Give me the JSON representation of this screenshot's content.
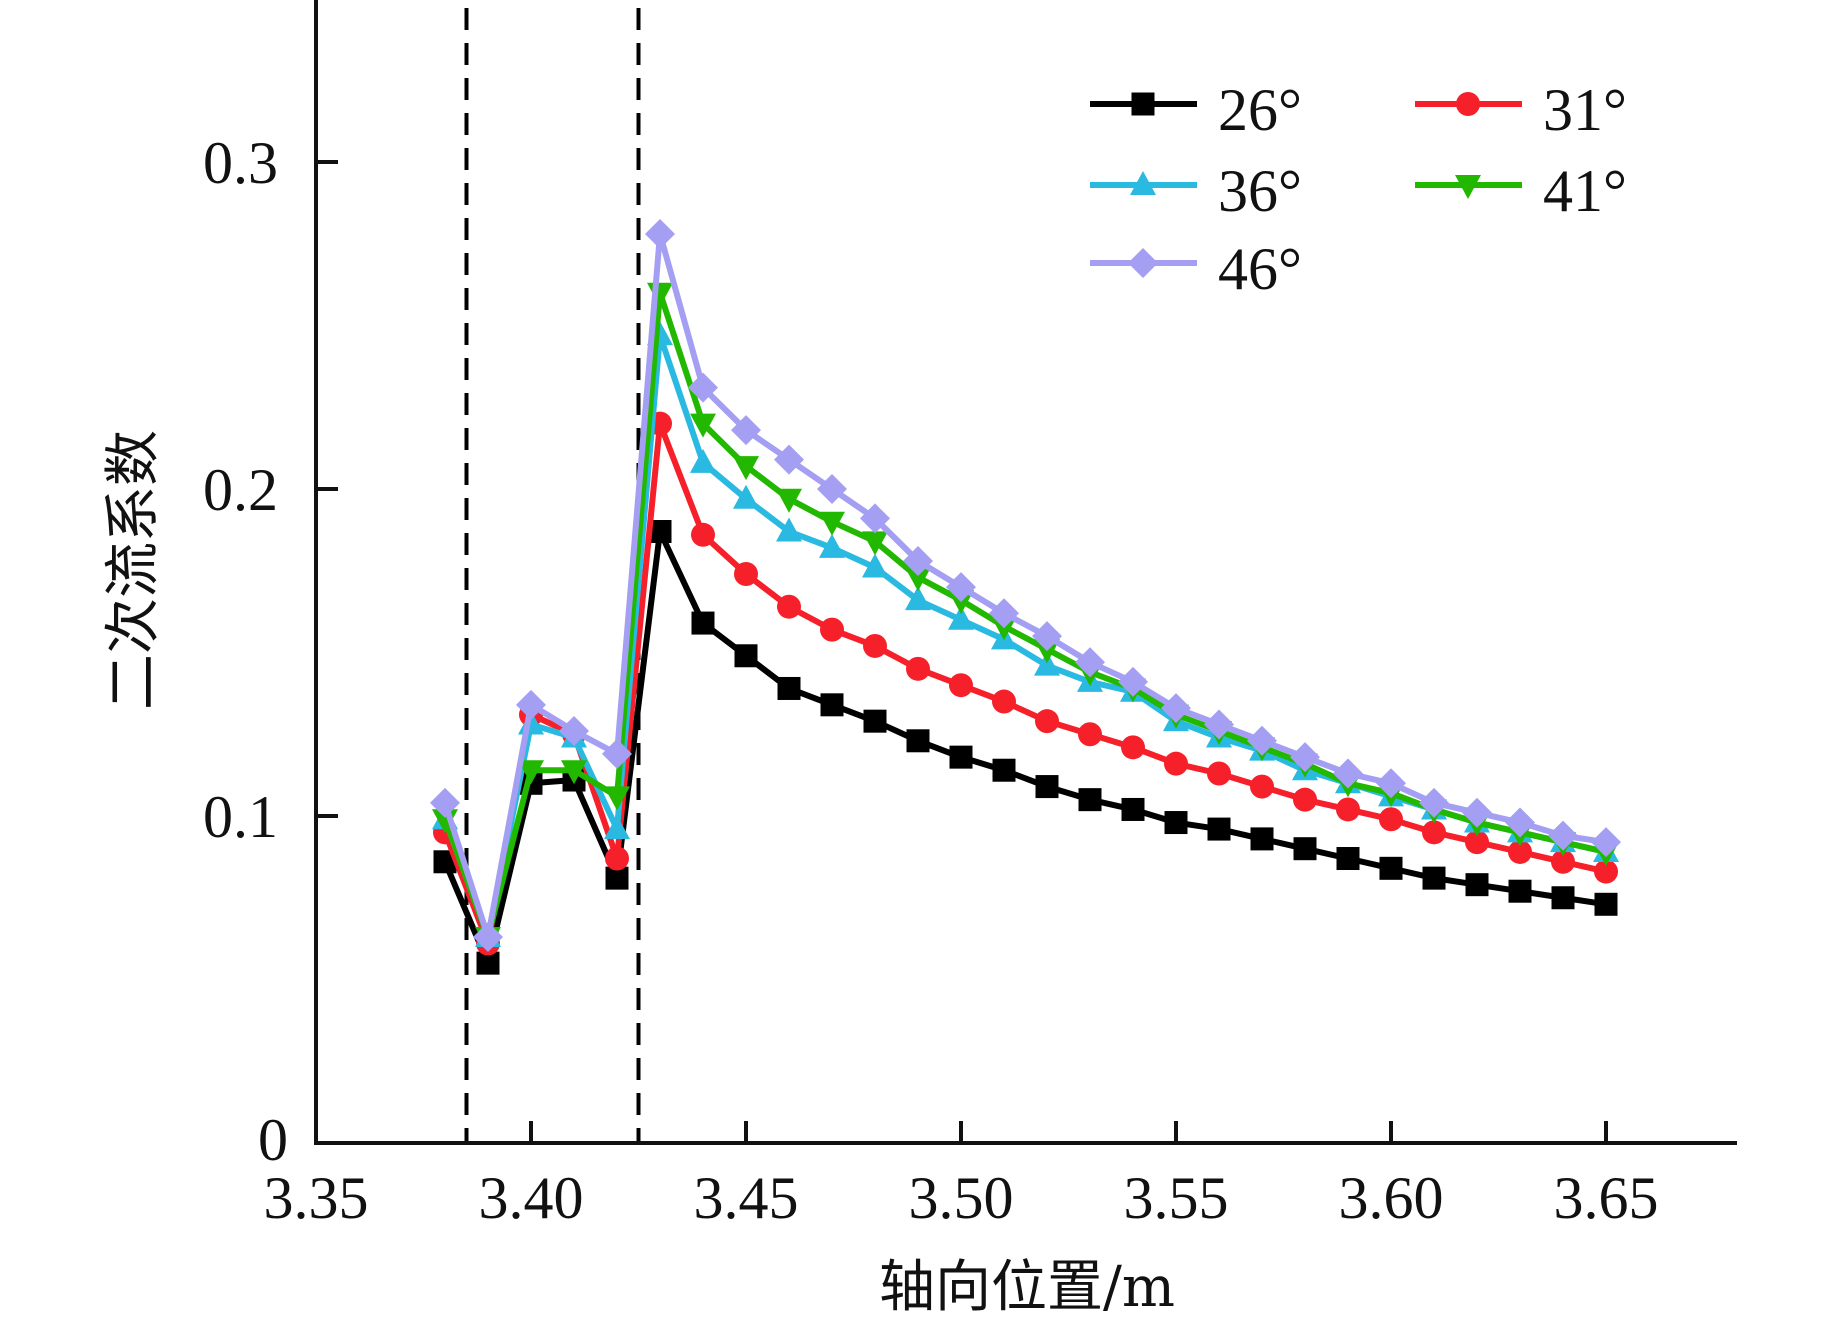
{
  "chart_data": {
    "type": "line",
    "title": "",
    "xlabel": "轴向位置/m",
    "ylabel": "二次流系数",
    "xlim": [
      3.35,
      3.68
    ],
    "ylim": [
      0,
      0.35
    ],
    "x_ticks": [
      3.35,
      3.4,
      3.45,
      3.5,
      3.55,
      3.6,
      3.65
    ],
    "x_tick_labels": [
      "3.35",
      "3.40",
      "3.45",
      "3.50",
      "3.55",
      "3.60",
      "3.65"
    ],
    "y_ticks": [
      0,
      0.1,
      0.2,
      0.3
    ],
    "y_tick_labels": [
      "0",
      "0.1",
      "0.2",
      "0.3"
    ],
    "grid": false,
    "legend_position": "top-right",
    "reference_lines": [
      {
        "type": "vertical",
        "x": 3.385,
        "style": "dashed",
        "color": "#000000"
      },
      {
        "type": "vertical",
        "x": 3.425,
        "style": "dashed",
        "color": "#000000"
      }
    ],
    "x": [
      3.38,
      3.39,
      3.4,
      3.41,
      3.42,
      3.43,
      3.44,
      3.45,
      3.46,
      3.47,
      3.48,
      3.49,
      3.5,
      3.51,
      3.52,
      3.53,
      3.54,
      3.55,
      3.56,
      3.57,
      3.58,
      3.59,
      3.6,
      3.61,
      3.62,
      3.63,
      3.64,
      3.65
    ],
    "series": [
      {
        "name": "26°",
        "color": "#000000",
        "marker": "square",
        "values": [
          0.086,
          0.055,
          0.11,
          0.111,
          0.081,
          0.187,
          0.159,
          0.149,
          0.139,
          0.134,
          0.129,
          0.123,
          0.118,
          0.114,
          0.109,
          0.105,
          0.102,
          0.098,
          0.096,
          0.093,
          0.09,
          0.087,
          0.084,
          0.081,
          0.079,
          0.077,
          0.075,
          0.073
        ]
      },
      {
        "name": "31°",
        "color": "#f5202a",
        "marker": "circle",
        "values": [
          0.095,
          0.061,
          0.131,
          0.125,
          0.087,
          0.22,
          0.186,
          0.174,
          0.164,
          0.157,
          0.152,
          0.145,
          0.14,
          0.135,
          0.129,
          0.125,
          0.121,
          0.116,
          0.113,
          0.109,
          0.105,
          0.102,
          0.099,
          0.095,
          0.092,
          0.089,
          0.086,
          0.083
        ]
      },
      {
        "name": "36°",
        "color": "#2ab9e0",
        "marker": "triangle-up",
        "values": [
          0.099,
          0.063,
          0.128,
          0.124,
          0.096,
          0.247,
          0.208,
          0.197,
          0.187,
          0.182,
          0.176,
          0.166,
          0.16,
          0.154,
          0.146,
          0.141,
          0.138,
          0.129,
          0.124,
          0.12,
          0.114,
          0.11,
          0.106,
          0.102,
          0.098,
          0.095,
          0.092,
          0.089
        ]
      },
      {
        "name": "41°",
        "color": "#22b800",
        "marker": "triangle-down",
        "values": [
          0.099,
          0.063,
          0.114,
          0.114,
          0.106,
          0.26,
          0.22,
          0.207,
          0.197,
          0.19,
          0.184,
          0.173,
          0.166,
          0.158,
          0.151,
          0.144,
          0.139,
          0.131,
          0.126,
          0.121,
          0.116,
          0.11,
          0.107,
          0.102,
          0.098,
          0.095,
          0.092,
          0.089
        ]
      },
      {
        "name": "46°",
        "color": "#a49ff2",
        "marker": "diamond",
        "values": [
          0.104,
          0.063,
          0.134,
          0.126,
          0.119,
          0.278,
          0.231,
          0.218,
          0.209,
          0.2,
          0.191,
          0.178,
          0.17,
          0.162,
          0.155,
          0.147,
          0.141,
          0.133,
          0.128,
          0.123,
          0.118,
          0.113,
          0.11,
          0.104,
          0.101,
          0.098,
          0.094,
          0.092
        ]
      }
    ]
  }
}
